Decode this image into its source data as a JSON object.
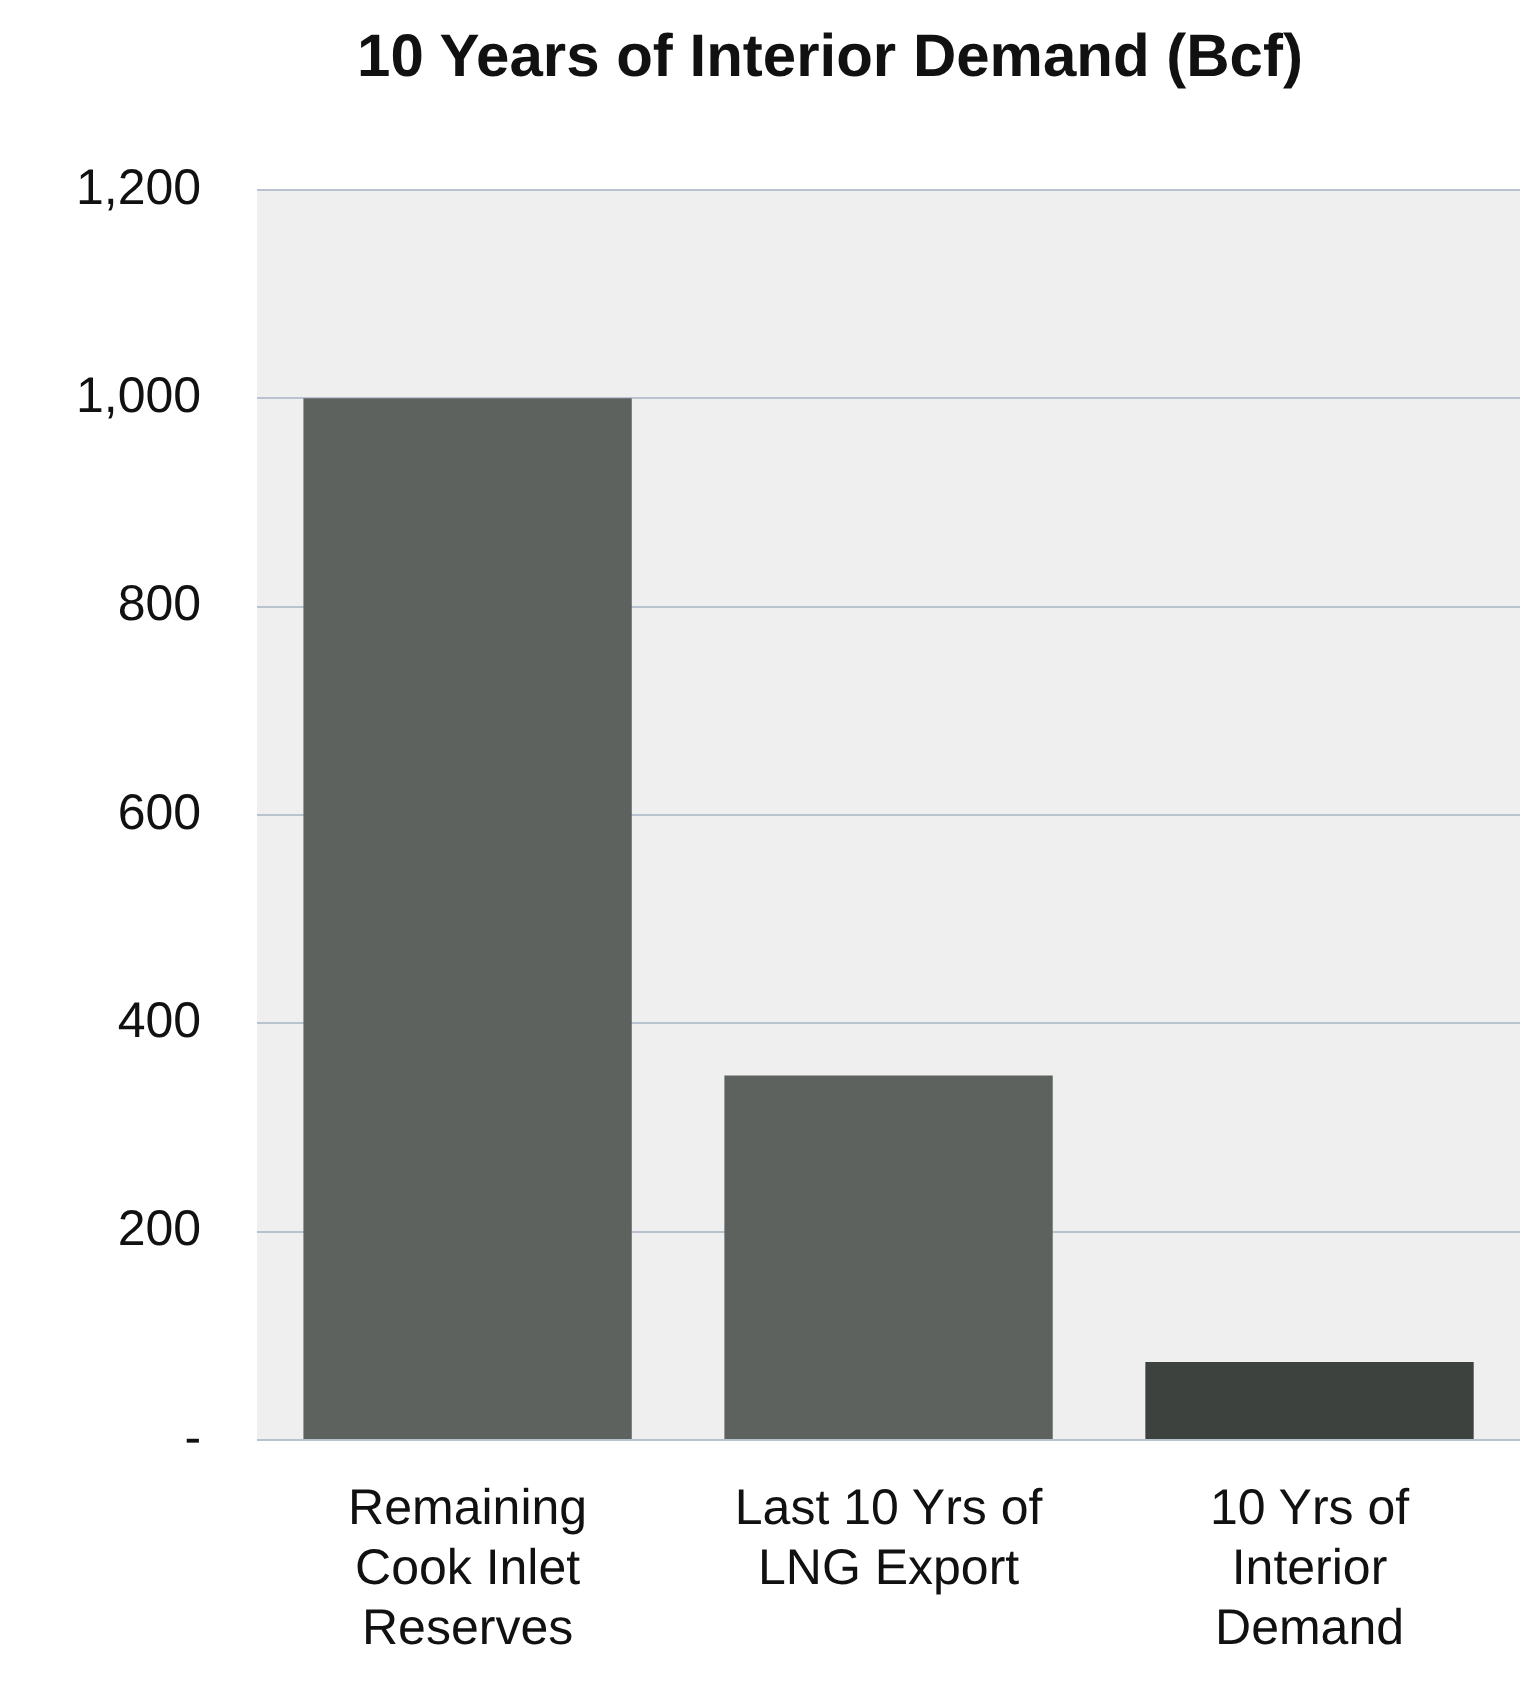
{
  "chart_data": {
    "type": "bar",
    "title": "10 Years of Interior Demand (Bcf)",
    "categories": [
      "Remaining\nCook Inlet\nReserves",
      "Last 10 Yrs of\nLNG Export",
      "10 Yrs of\nInterior\nDemand"
    ],
    "values": [
      1000,
      350,
      75
    ],
    "colors": [
      "#5e625f",
      "#5e625f",
      "#3d423f"
    ],
    "ylim": [
      0,
      1200
    ],
    "yticks": [
      {
        "value": 0,
        "label": "-"
      },
      {
        "value": 200,
        "label": "200"
      },
      {
        "value": 400,
        "label": "400"
      },
      {
        "value": 600,
        "label": "600"
      },
      {
        "value": 800,
        "label": "800"
      },
      {
        "value": 1000,
        "label": "1,000"
      },
      {
        "value": 1200,
        "label": "1,200"
      }
    ],
    "grid": true
  }
}
